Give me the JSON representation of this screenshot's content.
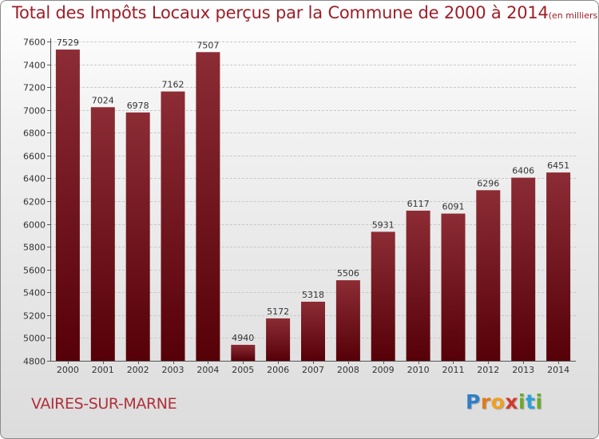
{
  "header": {
    "title": "Total des Impôts Locaux perçus par la Commune de 2000 à 2014",
    "unit": "(en milliers d'€)"
  },
  "footer": {
    "commune": "VAIRES-SUR-MARNE",
    "logo_letters": [
      "P",
      "r",
      "o",
      "x",
      "i",
      "t",
      "i"
    ],
    "logo_colors": [
      "#2f7fc8",
      "#e07b1a",
      "#f0a020",
      "#d23a2a",
      "#6aaa2a",
      "#2f9fd8",
      "#6aaa2a"
    ]
  },
  "colors": {
    "bar_top": "#8c2c35",
    "bar_bottom": "#560008",
    "title": "#9e1e27",
    "commune": "#b0303a",
    "grid": "#c8c8c8"
  },
  "chart_data": {
    "type": "bar",
    "title": "Total des Impôts Locaux perçus par la Commune de 2000 à 2014",
    "xlabel": "",
    "ylabel": "",
    "categories": [
      "2000",
      "2001",
      "2002",
      "2003",
      "2004",
      "2005",
      "2006",
      "2007",
      "2008",
      "2009",
      "2010",
      "2011",
      "2012",
      "2013",
      "2014"
    ],
    "values": [
      7529,
      7024,
      6978,
      7162,
      7507,
      4940,
      5172,
      5318,
      5506,
      5931,
      6117,
      6091,
      6296,
      6406,
      6451
    ],
    "ylim": [
      4800,
      7600
    ],
    "yticks": [
      4800,
      5000,
      5200,
      5400,
      5600,
      5800,
      6000,
      6200,
      6400,
      6600,
      6800,
      7000,
      7200,
      7400,
      7600
    ],
    "grid": true
  }
}
